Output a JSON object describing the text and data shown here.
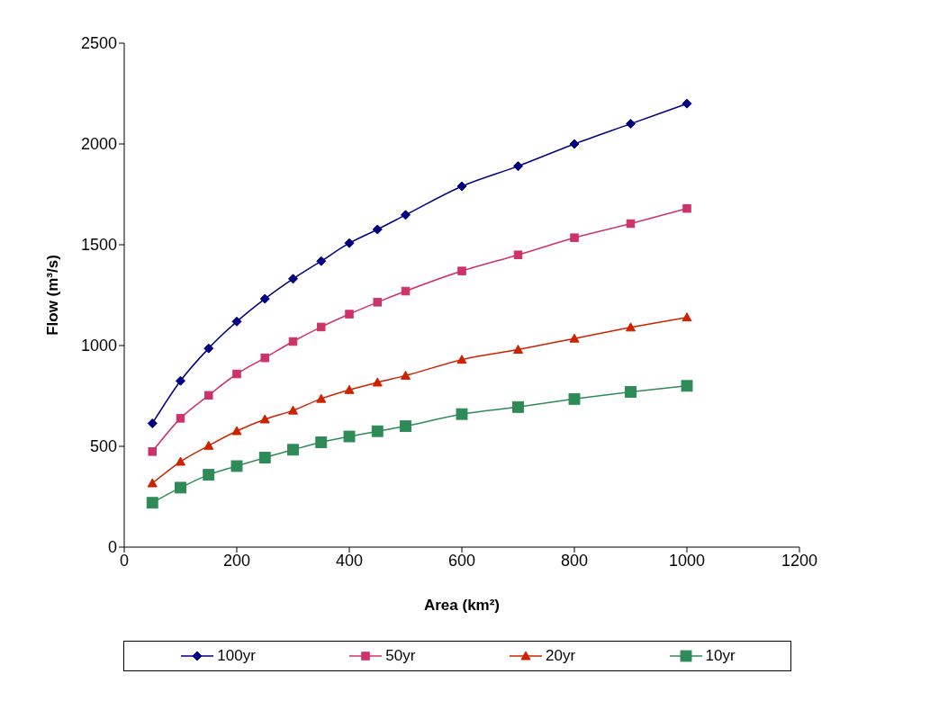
{
  "chart_data": {
    "type": "line",
    "xlabel": "Area (km²)",
    "ylabel": "Flow (m³/s)",
    "x": [
      50,
      100,
      150,
      200,
      250,
      300,
      350,
      400,
      450,
      500,
      600,
      700,
      800,
      900,
      1000
    ],
    "series": [
      {
        "name": "100yr",
        "color": "#000080",
        "marker": "diamond",
        "values": [
          614,
          825,
          986,
          1119,
          1232,
          1331,
          1419,
          1508,
          1576,
          1648,
          1790,
          1890,
          2000,
          2100,
          2200
        ]
      },
      {
        "name": "50yr",
        "color": "#cc3366",
        "marker": "square",
        "values": [
          474,
          639,
          753,
          859,
          939,
          1020,
          1092,
          1156,
          1215,
          1270,
          1370,
          1450,
          1535,
          1605,
          1680
        ]
      },
      {
        "name": "20yr",
        "color": "#cc2200",
        "marker": "triangle",
        "values": [
          317,
          424,
          503,
          576,
          634,
          678,
          736,
          780,
          817,
          851,
          930,
          980,
          1035,
          1090,
          1140
        ]
      },
      {
        "name": "10yr",
        "color": "#2e8b57",
        "marker": "square",
        "values": [
          220,
          295,
          359,
          402,
          444,
          483,
          520,
          549,
          575,
          600,
          660,
          695,
          735,
          770,
          800
        ]
      }
    ],
    "xlim": [
      0,
      1200
    ],
    "xticks": [
      0,
      200,
      400,
      600,
      800,
      1000,
      1200
    ],
    "ylim": [
      0,
      2500
    ],
    "yticks": [
      0,
      500,
      1000,
      1500,
      2000,
      2500
    ],
    "grid": false,
    "legend": "bottom",
    "line_style": "solid"
  }
}
